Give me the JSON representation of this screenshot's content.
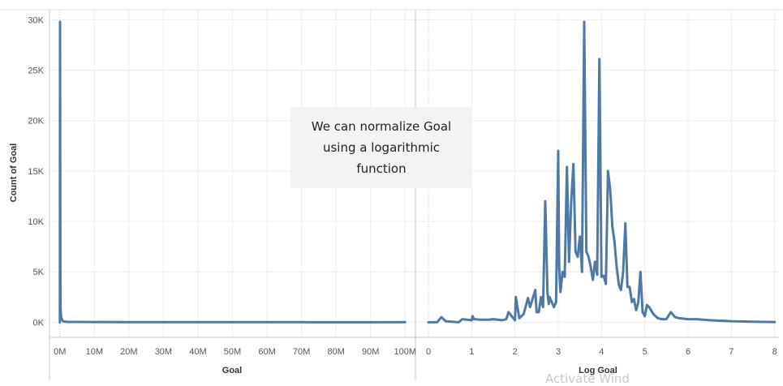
{
  "chart_data": [
    {
      "type": "line",
      "xlabel": "Goal",
      "ylabel": "Count of Goal",
      "x_tick_labels": [
        "0M",
        "10M",
        "20M",
        "30M",
        "40M",
        "50M",
        "60M",
        "70M",
        "80M",
        "90M",
        "100M"
      ],
      "x_ticks": [
        0,
        10,
        20,
        30,
        40,
        50,
        60,
        70,
        80,
        90,
        100
      ],
      "x_unit": "M",
      "xlim": [
        -3,
        103
      ],
      "ylim": [
        -1500,
        31000
      ],
      "y_ticks": [
        0,
        5000,
        10000,
        15000,
        20000,
        25000,
        30000
      ],
      "y_tick_labels": [
        "0K",
        "5K",
        "10K",
        "15K",
        "20K",
        "25K",
        "30K"
      ],
      "color": "#4e79a7",
      "series": [
        {
          "x": [
            0,
            0.05,
            0.1,
            0.15,
            0.2,
            0.3,
            0.4,
            0.6,
            0.8,
            1,
            1.5,
            2,
            5,
            10,
            20,
            30,
            40,
            50,
            60,
            70,
            80,
            90,
            100
          ],
          "y": [
            0,
            29800,
            17000,
            4800,
            1500,
            800,
            500,
            300,
            150,
            80,
            60,
            40,
            30,
            20,
            10,
            5,
            3,
            2,
            1,
            1,
            0,
            0,
            5
          ]
        }
      ],
      "grid": true
    },
    {
      "type": "line",
      "xlabel": "Log Goal",
      "x_ticks": [
        0,
        1,
        2,
        3,
        4,
        5,
        6,
        7,
        8
      ],
      "x_tick_labels": [
        "0",
        "1",
        "2",
        "3",
        "4",
        "5",
        "6",
        "7",
        "8"
      ],
      "xlim": [
        -0.3,
        8.1
      ],
      "ylim": [
        -1500,
        31000
      ],
      "color": "#4e79a7",
      "series": [
        {
          "x": [
            0,
            0.2,
            0.3,
            0.4,
            0.7,
            0.78,
            1.0,
            1.02,
            1.05,
            1.2,
            1.4,
            1.5,
            1.6,
            1.7,
            1.8,
            1.85,
            2.0,
            2.02,
            2.1,
            2.2,
            2.3,
            2.35,
            2.4,
            2.47,
            2.5,
            2.55,
            2.6,
            2.65,
            2.7,
            2.75,
            2.78,
            2.8,
            2.85,
            2.9,
            2.95,
            3.0,
            3.02,
            3.05,
            3.1,
            3.15,
            3.2,
            3.25,
            3.3,
            3.35,
            3.4,
            3.45,
            3.5,
            3.55,
            3.6,
            3.65,
            3.7,
            3.75,
            3.8,
            3.85,
            3.9,
            3.95,
            4.0,
            4.05,
            4.1,
            4.15,
            4.2,
            4.25,
            4.3,
            4.35,
            4.4,
            4.45,
            4.5,
            4.55,
            4.6,
            4.65,
            4.7,
            4.75,
            4.8,
            4.85,
            4.9,
            4.95,
            5.0,
            5.05,
            5.1,
            5.2,
            5.3,
            5.4,
            5.5,
            5.6,
            5.7,
            5.8,
            6.0,
            6.2,
            6.5,
            7.0,
            7.5,
            8.0
          ],
          "y": [
            0,
            0,
            500,
            100,
            0,
            300,
            200,
            600,
            300,
            250,
            250,
            300,
            250,
            200,
            300,
            1000,
            200,
            2500,
            400,
            800,
            2400,
            1500,
            2200,
            3200,
            1000,
            1000,
            2500,
            1500,
            12000,
            3000,
            1800,
            2500,
            2000,
            1500,
            2000,
            17000,
            5500,
            3000,
            5000,
            4500,
            15400,
            6000,
            12000,
            15700,
            7000,
            6500,
            8500,
            5000,
            29800,
            7000,
            6500,
            5500,
            4200,
            6000,
            4700,
            26100,
            4500,
            4600,
            3800,
            15000,
            13200,
            9500,
            8000,
            5500,
            3700,
            3200,
            5000,
            9800,
            3500,
            3500,
            2000,
            2300,
            1200,
            2000,
            5000,
            1000,
            600,
            1700,
            1500,
            800,
            400,
            300,
            300,
            1000,
            500,
            400,
            300,
            300,
            200,
            100,
            50,
            20
          ]
        }
      ],
      "grid": true
    }
  ],
  "annotation": {
    "line1": "We can normalize Goal",
    "line2": "using a logarithmic",
    "line3": "function"
  },
  "watermark": "Activate Wind"
}
